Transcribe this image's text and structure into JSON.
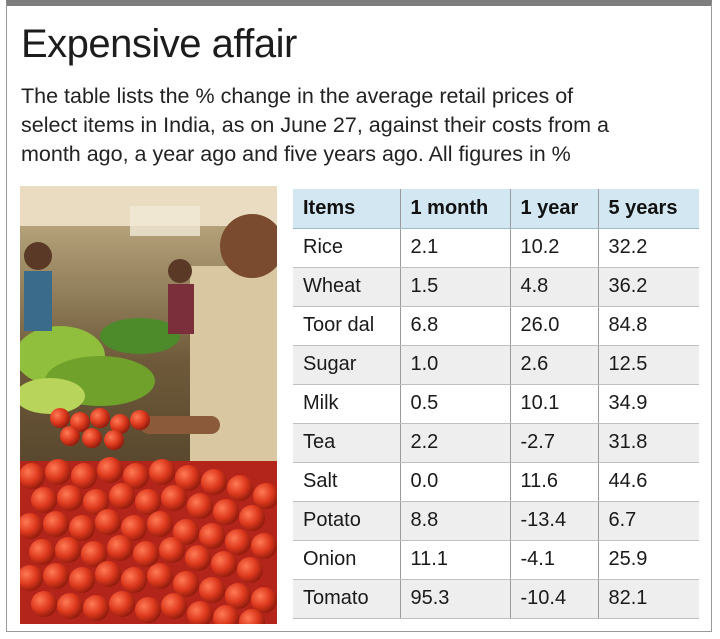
{
  "title": "Expensive affair",
  "subtitle": "The table lists the % change in the average retail prices of\nselect items in India, as on June 27, against their costs from a\nmonth ago, a year ago and five years ago. All figures in %",
  "table": {
    "headers": [
      "Items",
      "1 month",
      "1 year",
      "5 years"
    ],
    "rows": [
      [
        "Rice",
        "2.1",
        "10.2",
        "32.2"
      ],
      [
        "Wheat",
        "1.5",
        "4.8",
        "36.2"
      ],
      [
        "Toor dal",
        "6.8",
        "26.0",
        "84.8"
      ],
      [
        "Sugar",
        "1.0",
        "2.6",
        "12.5"
      ],
      [
        "Milk",
        "0.5",
        "10.1",
        "34.9"
      ],
      [
        "Tea",
        "2.2",
        "-2.7",
        "31.8"
      ],
      [
        "Salt",
        "0.0",
        "11.6",
        "44.6"
      ],
      [
        "Potato",
        "8.8",
        "-13.4",
        "6.7"
      ],
      [
        "Onion",
        "11.1",
        "-4.1",
        "25.9"
      ],
      [
        "Tomato",
        "95.3",
        "-10.4",
        "82.1"
      ]
    ]
  },
  "photo": {
    "icon": "vegetable-market-photo"
  },
  "colors": {
    "header_bg": "#d3e7f2",
    "row_alt": "#eeeeee",
    "tomato": "#d9361f"
  }
}
